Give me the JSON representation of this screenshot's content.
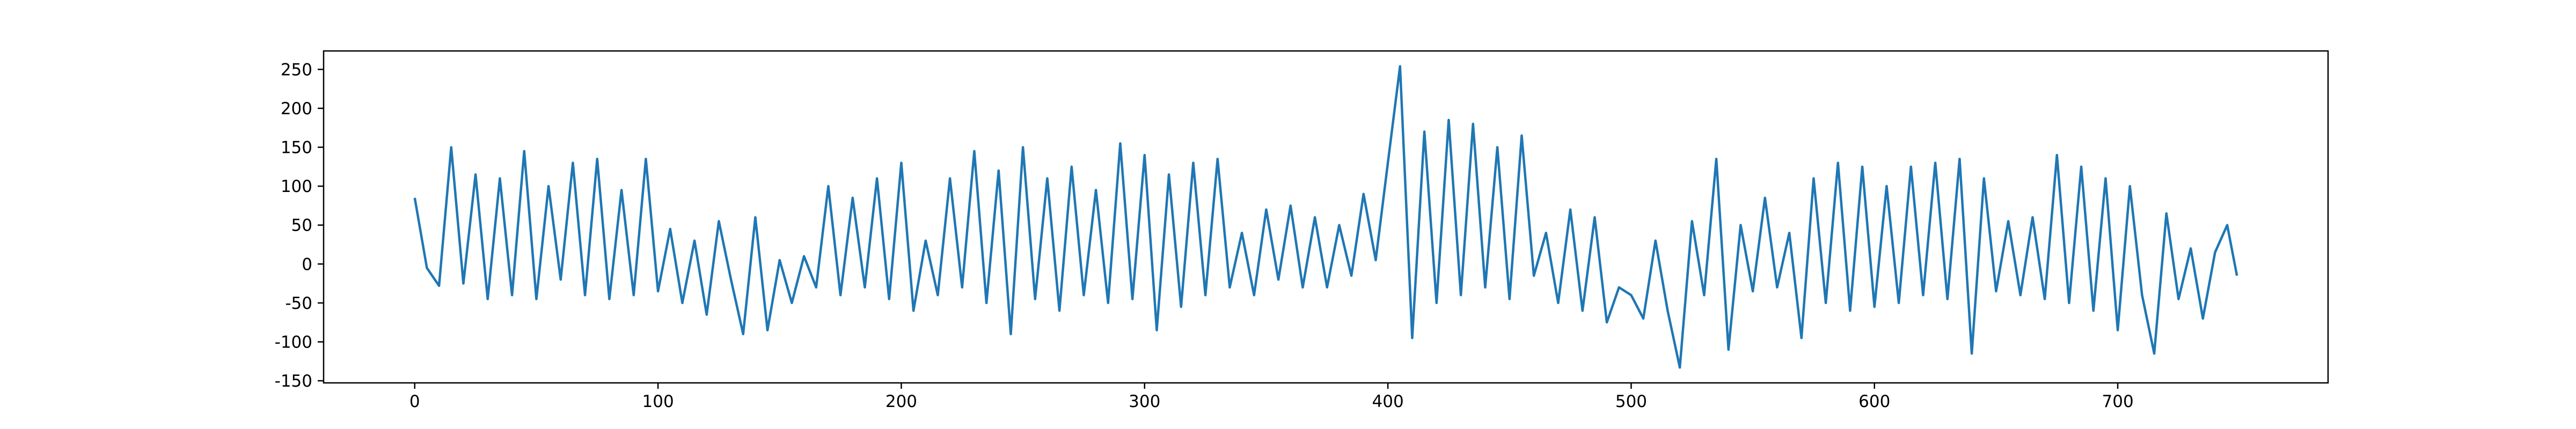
{
  "chart_data": {
    "type": "line",
    "color": "#1f77b4",
    "xlim": [
      -37.45,
      786.45
    ],
    "xticks": [
      0,
      100,
      200,
      300,
      400,
      500,
      600,
      700
    ],
    "ylim": [
      -152.7,
      273.7
    ],
    "yticks": [
      -150,
      -100,
      -50,
      0,
      50,
      100,
      150,
      200,
      250
    ],
    "x": [
      0,
      5,
      10,
      15,
      20,
      25,
      30,
      35,
      40,
      45,
      50,
      55,
      60,
      65,
      70,
      75,
      80,
      85,
      90,
      95,
      100,
      105,
      110,
      115,
      120,
      125,
      130,
      135,
      140,
      145,
      150,
      155,
      160,
      165,
      170,
      175,
      180,
      185,
      190,
      195,
      200,
      205,
      210,
      215,
      220,
      225,
      230,
      235,
      240,
      245,
      250,
      255,
      260,
      265,
      270,
      275,
      280,
      285,
      290,
      295,
      300,
      305,
      310,
      315,
      320,
      325,
      330,
      335,
      340,
      345,
      350,
      355,
      360,
      365,
      370,
      375,
      380,
      385,
      390,
      395,
      400,
      405,
      410,
      415,
      420,
      425,
      430,
      435,
      440,
      445,
      450,
      455,
      460,
      465,
      470,
      475,
      480,
      485,
      490,
      495,
      500,
      505,
      510,
      515,
      520,
      525,
      530,
      535,
      540,
      545,
      550,
      555,
      560,
      565,
      570,
      575,
      580,
      585,
      590,
      595,
      600,
      605,
      610,
      615,
      620,
      625,
      630,
      635,
      640,
      645,
      650,
      655,
      660,
      665,
      670,
      675,
      680,
      685,
      690,
      695,
      700,
      705,
      710,
      715,
      720,
      725,
      730,
      735,
      740,
      745,
      749
    ],
    "values": [
      85,
      -5,
      -28,
      150,
      -25,
      115,
      -45,
      110,
      -40,
      145,
      -45,
      100,
      -20,
      130,
      -40,
      135,
      -45,
      95,
      -40,
      135,
      -35,
      45,
      -50,
      30,
      -65,
      55,
      -20,
      -90,
      60,
      -85,
      5,
      -50,
      10,
      -30,
      100,
      -40,
      85,
      -30,
      110,
      -45,
      130,
      -60,
      30,
      -40,
      110,
      -30,
      145,
      -50,
      120,
      -90,
      150,
      -45,
      110,
      -60,
      125,
      -40,
      95,
      -50,
      155,
      -45,
      140,
      -85,
      115,
      -55,
      130,
      -40,
      135,
      -30,
      40,
      -40,
      70,
      -20,
      75,
      -30,
      60,
      -30,
      50,
      -15,
      90,
      5,
      130,
      254,
      -95,
      170,
      -50,
      185,
      -40,
      180,
      -30,
      150,
      -45,
      165,
      -15,
      40,
      -50,
      70,
      -60,
      60,
      -75,
      -30,
      -40,
      -70,
      30,
      -60,
      -133,
      55,
      -40,
      135,
      -110,
      50,
      -35,
      85,
      -30,
      40,
      -95,
      110,
      -50,
      130,
      -60,
      125,
      -55,
      100,
      -50,
      125,
      -40,
      130,
      -45,
      135,
      -115,
      110,
      -35,
      55,
      -40,
      60,
      -45,
      140,
      -50,
      125,
      -60,
      110,
      -85,
      100,
      -40,
      -115,
      65,
      -45,
      20,
      -70,
      15,
      50,
      -15
    ]
  }
}
